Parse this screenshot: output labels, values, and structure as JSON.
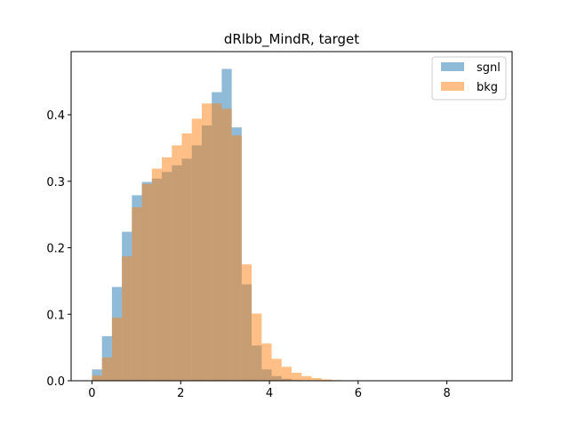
{
  "chart_data": {
    "type": "bar",
    "title": "dRlbb_MindR, target",
    "xlabel": "",
    "ylabel": "",
    "xlim": [
      -0.47,
      9.47
    ],
    "ylim": [
      0,
      0.495
    ],
    "xticks": [
      0,
      2,
      4,
      6,
      8
    ],
    "yticks": [
      0.0,
      0.1,
      0.2,
      0.3,
      0.4
    ],
    "ytick_labels": [
      "0.0",
      "0.1",
      "0.2",
      "0.3",
      "0.4"
    ],
    "grid": false,
    "legend_position": "top-right",
    "bin_width": 0.225,
    "bin_start": 0.0,
    "series": [
      {
        "name": "sgnl",
        "color": "#1f77b4",
        "alpha": 0.5,
        "values": [
          0.017,
          0.067,
          0.141,
          0.224,
          0.279,
          0.299,
          0.304,
          0.314,
          0.324,
          0.334,
          0.354,
          0.384,
          0.434,
          0.469,
          0.381,
          0.145,
          0.053,
          0.017,
          0.007,
          0.003,
          0.001,
          0.0005,
          0.0003,
          0,
          0,
          0,
          0,
          0,
          0,
          0,
          0,
          0,
          0,
          0,
          0,
          0,
          0,
          0,
          0,
          0,
          0
        ]
      },
      {
        "name": "bkg",
        "color": "#ff7f0e",
        "alpha": 0.5,
        "values": [
          0.008,
          0.035,
          0.095,
          0.187,
          0.261,
          0.296,
          0.319,
          0.336,
          0.354,
          0.372,
          0.394,
          0.417,
          0.417,
          0.409,
          0.369,
          0.175,
          0.101,
          0.056,
          0.033,
          0.021,
          0.012,
          0.007,
          0.004,
          0.002,
          0.001,
          0.0005,
          0.0003,
          0.0001,
          0,
          0,
          0,
          0,
          0,
          0,
          0,
          0,
          0,
          0,
          0,
          0,
          0
        ]
      }
    ]
  }
}
